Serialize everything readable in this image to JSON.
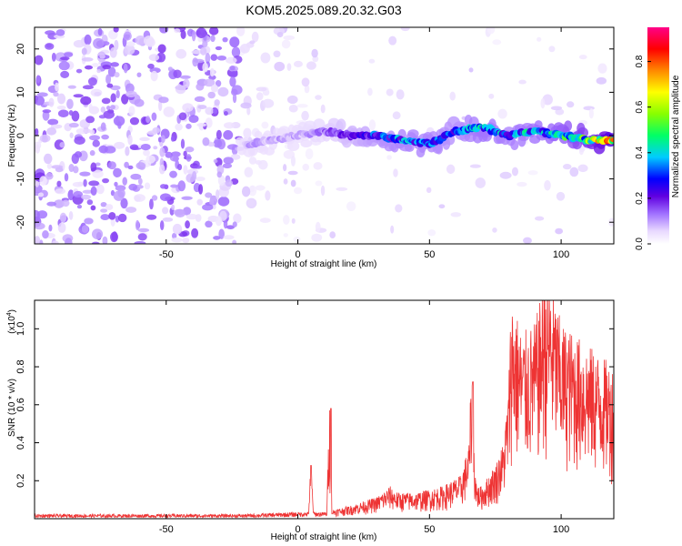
{
  "title": "KOM5.2025.089.20.32.G03",
  "chart_data": [
    {
      "type": "heatmap",
      "xlabel": "Height of straight line (km)",
      "ylabel": "Frequency (Hz)",
      "xlim": [
        -100,
        120
      ],
      "ylim": [
        -25,
        25
      ],
      "xticks": [
        -50,
        0,
        50,
        100
      ],
      "yticks": [
        -20,
        -10,
        0,
        10,
        20
      ],
      "colorbar": {
        "label": "Normalized spectral amplitude",
        "range": [
          0,
          0.95
        ],
        "ticks": [
          0.0,
          0.2,
          0.4,
          0.6,
          0.8
        ],
        "colormap": [
          "#ffffff",
          "#e8d8ff",
          "#a070ff",
          "#6000e0",
          "#0000ff",
          "#00ccff",
          "#00ff66",
          "#88ff00",
          "#ffff00",
          "#ff8800",
          "#ff0000",
          "#ff0088"
        ]
      },
      "ridge": {
        "description_points_x": [
          -20,
          -10,
          0,
          10,
          20,
          30,
          40,
          50,
          60,
          70,
          80,
          90,
          100,
          110,
          120
        ],
        "frequency_hz": [
          -2,
          -1,
          0,
          1,
          0,
          0,
          -1,
          -2,
          1,
          2,
          0,
          1,
          0,
          -1,
          -1
        ],
        "peak_amplitude": [
          0.15,
          0.15,
          0.15,
          0.2,
          0.3,
          0.4,
          0.45,
          0.45,
          0.4,
          0.5,
          0.45,
          0.5,
          0.55,
          0.65,
          0.9
        ]
      }
    },
    {
      "type": "line",
      "xlabel": "Height of straight line (km)",
      "ylabel": "SNR (10 * v/v)",
      "yscale_label": "(x10",
      "yscale_exp": "4",
      "yscale_close": ")",
      "xlim": [
        -100,
        120
      ],
      "ylim": [
        0,
        1.15
      ],
      "xticks": [
        -50,
        0,
        50,
        100
      ],
      "yticks": [
        0.2,
        0.4,
        0.6,
        0.8,
        1.0
      ],
      "series": [
        {
          "color": "#ee3333",
          "envelope": {
            "x": [
              -100,
              -20,
              0,
              4,
              5,
              6,
              11,
              12,
              13,
              20,
              30,
              35,
              38,
              45,
              55,
              62,
              65,
              66,
              67,
              68,
              70,
              75,
              78,
              80,
              81,
              85,
              90,
              95,
              100,
              110,
              120
            ],
            "y": [
              0.02,
              0.02,
              0.03,
              0.03,
              0.28,
              0.03,
              0.03,
              0.58,
              0.04,
              0.06,
              0.1,
              0.15,
              0.12,
              0.12,
              0.15,
              0.2,
              0.35,
              0.72,
              0.3,
              0.15,
              0.15,
              0.25,
              0.35,
              0.6,
              1.05,
              0.85,
              0.9,
              1.15,
              0.9,
              0.8,
              0.7
            ]
          }
        }
      ]
    }
  ]
}
